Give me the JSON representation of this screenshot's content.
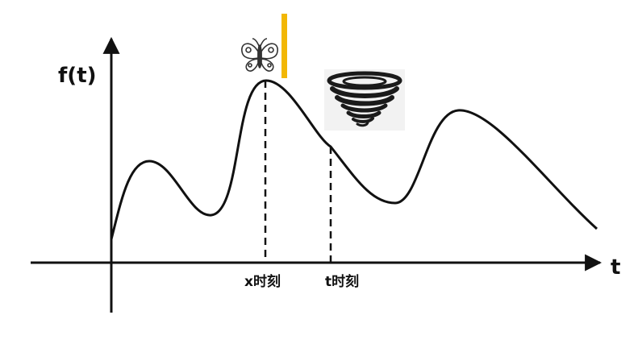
{
  "axes": {
    "y_label": "f(t)",
    "x_label": "t"
  },
  "markers": [
    {
      "label": "x时刻"
    },
    {
      "label": "t时刻"
    }
  ],
  "icons": {
    "butterfly": "butterfly-icon",
    "tornado": "tornado-icon"
  },
  "colors": {
    "curve": "#111111",
    "highlight_bar": "#f2b705"
  }
}
